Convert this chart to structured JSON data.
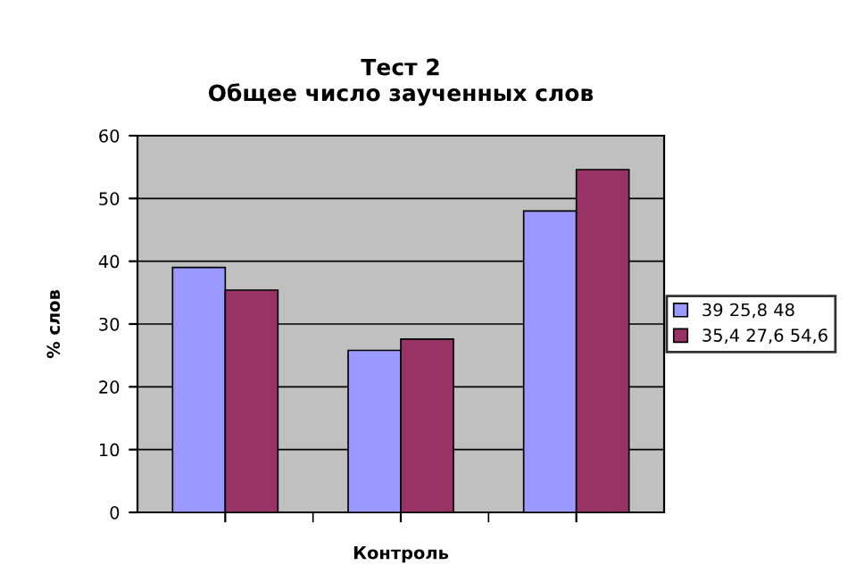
{
  "chart_data": {
    "type": "bar",
    "title": "Тест 2\nОбщее число заученных слов",
    "xlabel": "Контроль",
    "ylabel": "% слов",
    "categories": [
      null,
      null,
      null
    ],
    "series": [
      {
        "name": "39 25,8 48",
        "color": "#9999ff",
        "values": [
          39,
          25.8,
          48
        ]
      },
      {
        "name": "35,4 27,6 54,6",
        "color": "#993366",
        "values": [
          35.4,
          27.6,
          54.6
        ]
      }
    ],
    "ylim": [
      0,
      60
    ],
    "yticks": [
      0,
      10,
      20,
      30,
      40,
      50,
      60
    ],
    "grid": "y",
    "legend": "right"
  }
}
